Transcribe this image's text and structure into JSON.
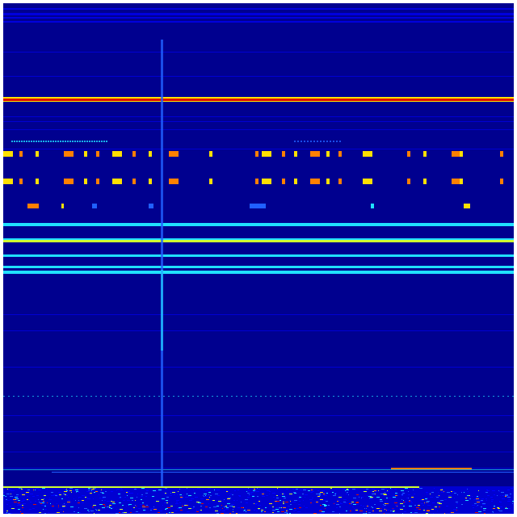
{
  "image": {
    "kind": "spectrogram-waterfall",
    "colormap": "jet",
    "colors": {
      "background": "#00008f",
      "blue": "#0000ff",
      "light_blue": "#2060ff",
      "cyan": "#20e0ff",
      "yellow_green": "#d0ff30",
      "yellow": "#ffe000",
      "orange": "#ff8000",
      "red": "#e01000"
    }
  }
}
